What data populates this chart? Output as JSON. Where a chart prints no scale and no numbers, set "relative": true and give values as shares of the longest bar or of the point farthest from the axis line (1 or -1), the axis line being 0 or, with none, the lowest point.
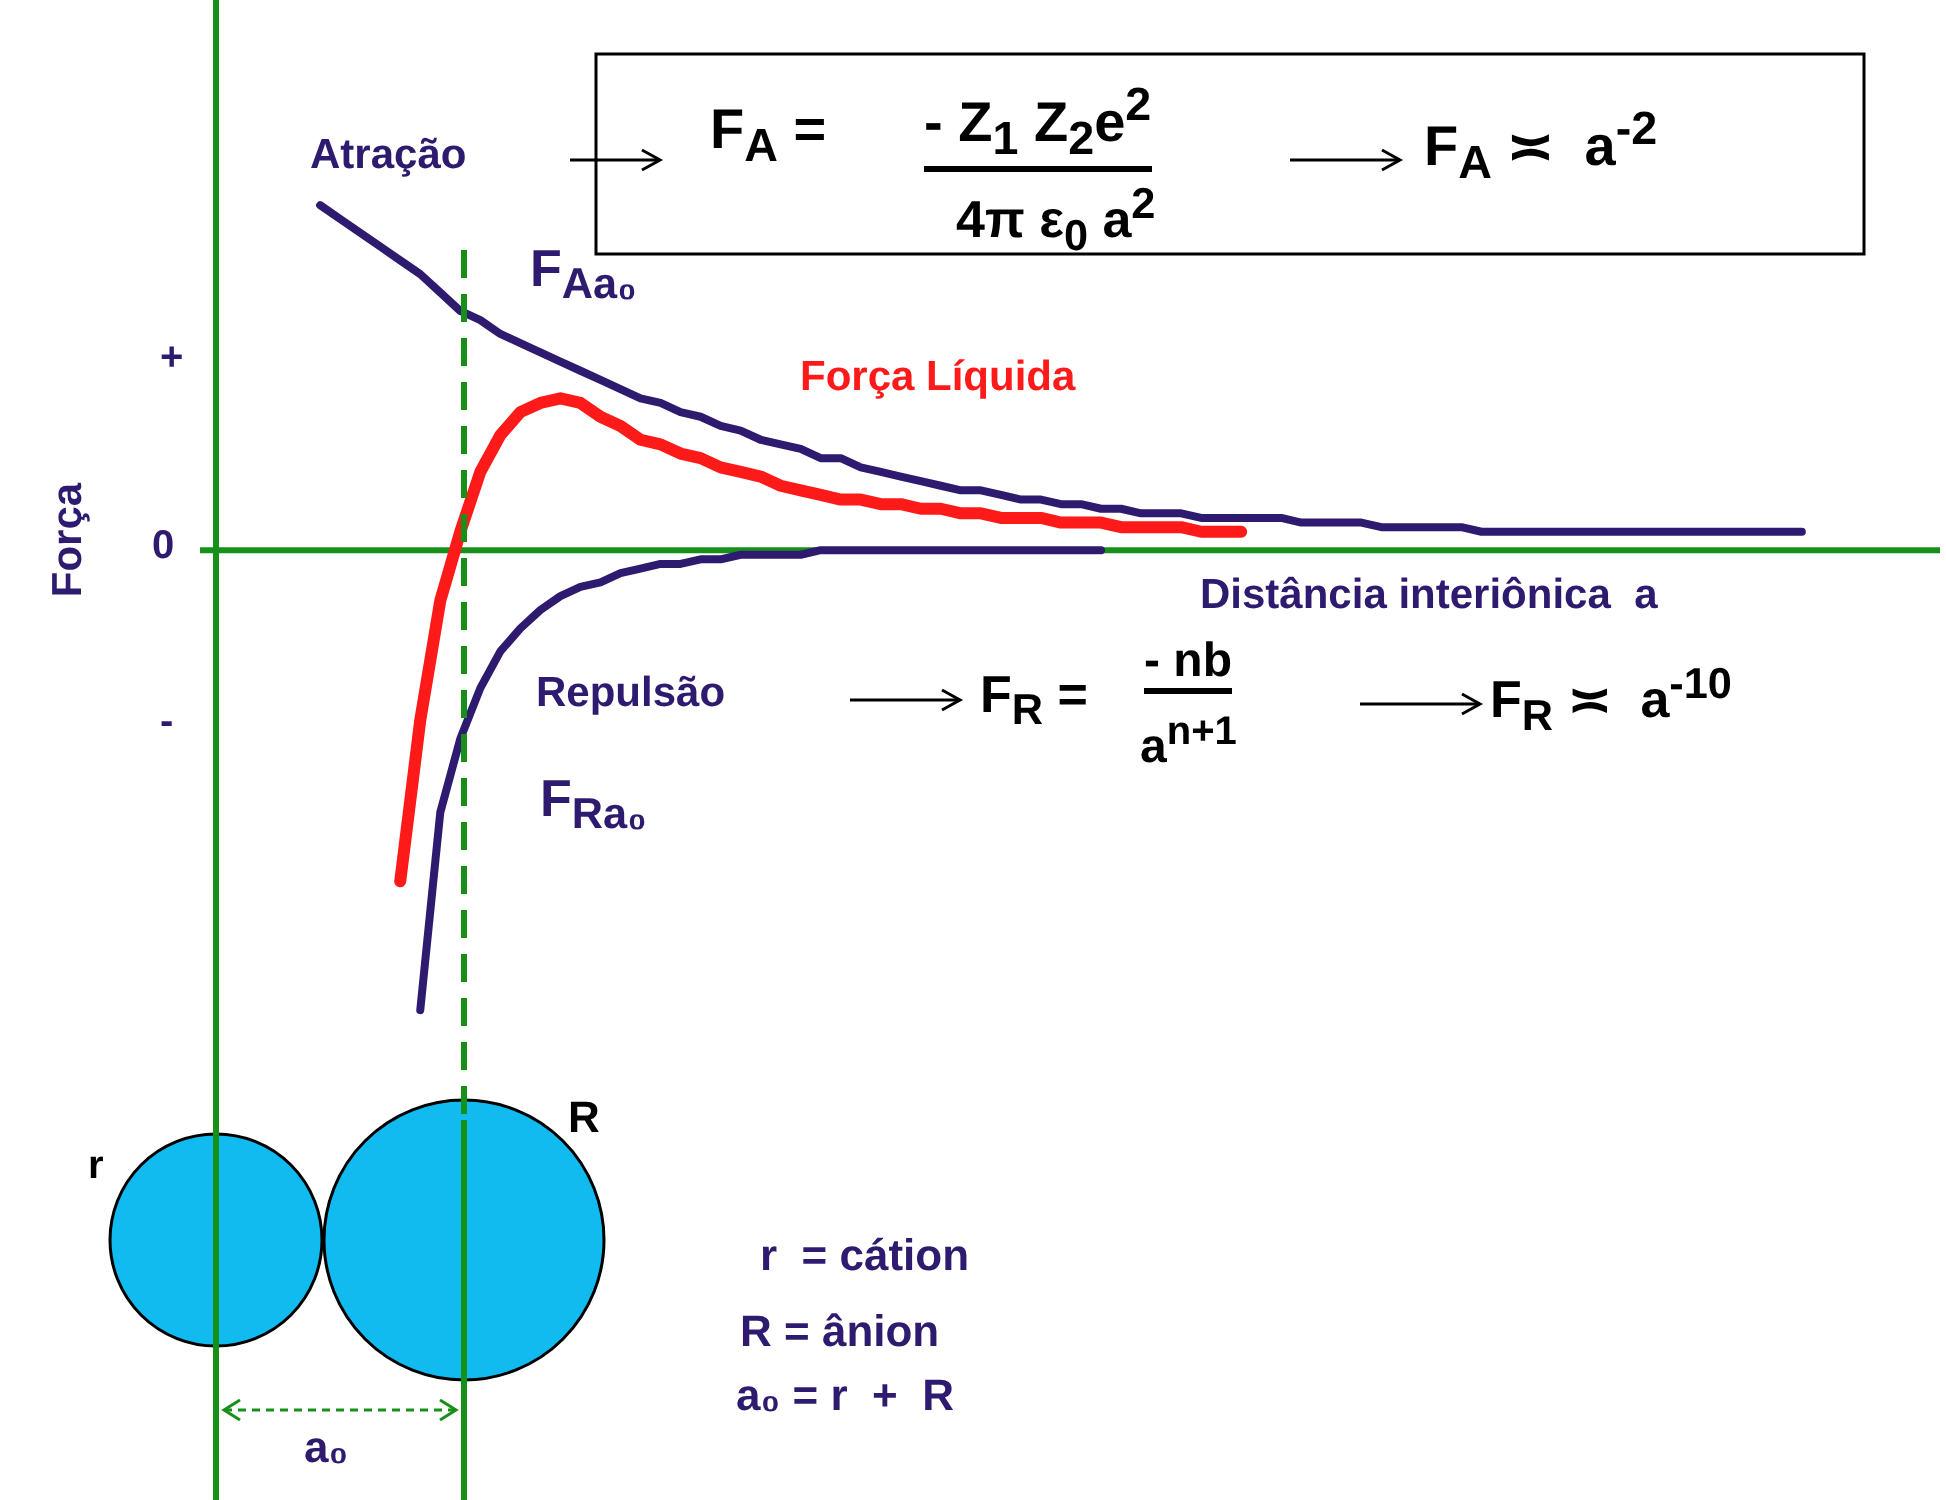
{
  "chart_data": {
    "type": "line",
    "relative": true,
    "marker": "none",
    "xlabel": "Distância interiônica  a",
    "ylabel": "Força",
    "categories": [
      null,
      null,
      null,
      null,
      null,
      null,
      null,
      null,
      null,
      null,
      null,
      null,
      null,
      null,
      null,
      null,
      null,
      null,
      null,
      null,
      null,
      null,
      null,
      null,
      null,
      null,
      null,
      null,
      null,
      null,
      null,
      null,
      null,
      null,
      null,
      null,
      null,
      null,
      null,
      null,
      null,
      null,
      null,
      null,
      null,
      null,
      null,
      null,
      null,
      null,
      null,
      null,
      null,
      null,
      null,
      null,
      null,
      null,
      null,
      null,
      null,
      null,
      null,
      null,
      null,
      null,
      null,
      null,
      null,
      null,
      null,
      null,
      null,
      null,
      null,
      null
    ],
    "series": [
      {
        "name": "Atração",
        "color": "#2e1a6e",
        "values": [
          null,
          0.75,
          0.72,
          0.69,
          0.66,
          0.63,
          0.6,
          0.56,
          0.52,
          0.5,
          0.47,
          0.45,
          0.43,
          0.41,
          0.39,
          0.37,
          0.35,
          0.33,
          0.32,
          0.3,
          0.29,
          0.27,
          0.26,
          0.24,
          0.23,
          0.22,
          0.2,
          0.2,
          0.18,
          0.17,
          0.16,
          0.15,
          0.14,
          0.13,
          0.13,
          0.12,
          0.11,
          0.11,
          0.1,
          0.1,
          0.09,
          0.09,
          0.08,
          0.08,
          0.08,
          0.07,
          0.07,
          0.07,
          0.07,
          0.07,
          0.06,
          0.06,
          0.06,
          0.06,
          0.05,
          0.05,
          0.05,
          0.05,
          0.05,
          0.04,
          0.04,
          0.04,
          0.04,
          0.04,
          0.04,
          0.04,
          0.04,
          0.04,
          0.04,
          0.04,
          0.04,
          0.04,
          0.04,
          0.04,
          0.04,
          0.04
        ]
      },
      {
        "name": "Força Líquida",
        "color": "#ff1a1a",
        "values": [
          null,
          null,
          null,
          null,
          null,
          -0.72,
          -0.37,
          -0.11,
          0.04,
          0.17,
          0.25,
          0.3,
          0.32,
          0.33,
          0.32,
          0.29,
          0.27,
          0.24,
          0.23,
          0.21,
          0.2,
          0.18,
          0.17,
          0.16,
          0.14,
          0.13,
          0.12,
          0.11,
          0.11,
          0.1,
          0.1,
          0.09,
          0.09,
          0.08,
          0.08,
          0.07,
          0.07,
          0.07,
          0.06,
          0.06,
          0.06,
          0.05,
          0.05,
          0.05,
          0.05,
          0.04,
          0.04,
          0.04,
          null,
          null,
          null,
          null,
          null,
          null,
          null,
          null,
          null,
          null,
          null,
          null,
          null,
          null,
          null,
          null,
          null,
          null,
          null,
          null,
          null,
          null,
          null,
          null,
          null,
          null,
          null,
          null
        ]
      },
      {
        "name": "Repulsão",
        "color": "#2e1a6e",
        "values": [
          null,
          null,
          null,
          null,
          null,
          null,
          -1,
          -0.57,
          -0.41,
          -0.3,
          -0.22,
          -0.17,
          -0.13,
          -0.1,
          -0.08,
          -0.07,
          -0.05,
          -0.04,
          -0.03,
          -0.03,
          -0.02,
          -0.02,
          -0.01,
          -0.01,
          -0.01,
          -0.01,
          0,
          0,
          0,
          0,
          0,
          0,
          0,
          0,
          0,
          0,
          0,
          0,
          0,
          0,
          0,
          null,
          null,
          null,
          null,
          null,
          null,
          null,
          null,
          null,
          null,
          null,
          null,
          null,
          null,
          null,
          null,
          null,
          null,
          null,
          null,
          null,
          null,
          null,
          null,
          null,
          null,
          null,
          null,
          null,
          null,
          null,
          null,
          null,
          null,
          null
        ]
      }
    ],
    "ref_lines": [
      {
        "axis": "y",
        "value": 0,
        "color": "#17901a"
      }
    ],
    "annotations": [
      "F$_{A}$ =",
      "- Z$_{1}$ Z$_{2}$e$^{2}$",
      "4π ε$_{0}$ a$^{2}$",
      "F$_{A}$ ≍  a$^{-2}$",
      "F$_{Aa₀}$",
      "F$_{R}$ =",
      "- nb",
      "a$^{n+1}$",
      "F$_{R}$ ≍  a$^{-10}$",
      "F$_{Ra₀}$",
      "+",
      "0",
      "-",
      "r",
      "R",
      "r  = cátion",
      "R = ânion",
      "a₀ = r  +  R",
      "a₀"
    ]
  }
}
